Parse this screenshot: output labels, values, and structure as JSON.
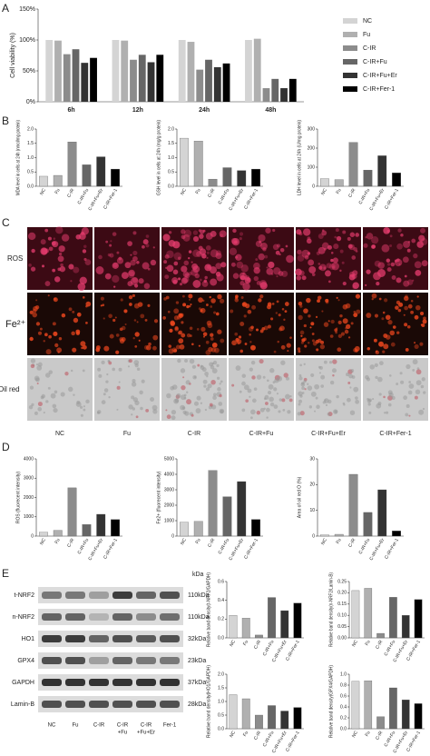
{
  "panel_labels": [
    "A",
    "B",
    "C",
    "D",
    "E"
  ],
  "chart_data": [
    {
      "type": "bar",
      "ylabel": "Cell viability (%)",
      "categories": [
        "6h",
        "12h",
        "24h",
        "48h"
      ],
      "series": [
        {
          "name": "NC",
          "color": "#d4d4d4",
          "values": [
            100,
            100,
            100,
            100
          ]
        },
        {
          "name": "Fu",
          "color": "#b0b0b0",
          "values": [
            99,
            99,
            97,
            102
          ]
        },
        {
          "name": "C-IR",
          "color": "#8c8c8c",
          "values": [
            77,
            68,
            52,
            22
          ]
        },
        {
          "name": "C-IR+Fu",
          "color": "#666666",
          "values": [
            85,
            76,
            68,
            37
          ]
        },
        {
          "name": "C-IR+Fu+Er",
          "color": "#333333",
          "values": [
            63,
            64,
            56,
            22
          ]
        },
        {
          "name": "C-IR+Fer-1",
          "color": "#000000",
          "values": [
            71,
            76,
            62,
            37
          ]
        }
      ],
      "ylim": [
        0,
        150
      ],
      "yticks": [
        {
          "value": 0,
          "label": "0%"
        },
        {
          "value": 50,
          "label": "50%"
        },
        {
          "value": 100,
          "label": "100%"
        },
        {
          "value": 150,
          "label": "150%"
        }
      ],
      "legend": "right"
    },
    {
      "type": "bar",
      "ylabel": "MDA level in cells at 24h (nmol/mg protein)",
      "categories": [
        "NC",
        "Fu",
        "C-IR",
        "C-IR+Fu",
        "C-IR+Fu+Er",
        "C-IR+Fer-1"
      ],
      "values": [
        0.35,
        0.38,
        1.55,
        0.75,
        1.03,
        0.6
      ],
      "colors": [
        "#d4d4d4",
        "#b0b0b0",
        "#8c8c8c",
        "#666666",
        "#333333",
        "#000000"
      ],
      "ylim": [
        0,
        2
      ],
      "yticks": [
        {
          "value": 0,
          "label": "0.0"
        },
        {
          "value": 0.5,
          "label": "0.5"
        },
        {
          "value": 1,
          "label": "1.0"
        },
        {
          "value": 1.5,
          "label": "1.5"
        },
        {
          "value": 2,
          "label": "2.0"
        }
      ]
    },
    {
      "type": "bar",
      "ylabel": "GSH level in cells at 24h (mg/g protein)",
      "categories": [
        "NC",
        "Fu",
        "C-IR",
        "C-IR+Fu",
        "C-IR+Fu+Er",
        "C-IR+Fer-1"
      ],
      "values": [
        1.68,
        1.58,
        0.25,
        0.65,
        0.55,
        0.6
      ],
      "colors": [
        "#d4d4d4",
        "#b0b0b0",
        "#8c8c8c",
        "#666666",
        "#333333",
        "#000000"
      ],
      "ylim": [
        0,
        2
      ],
      "yticks": [
        {
          "value": 0,
          "label": "0.0"
        },
        {
          "value": 0.5,
          "label": "0.5"
        },
        {
          "value": 1,
          "label": "1.0"
        },
        {
          "value": 1.5,
          "label": "1.5"
        },
        {
          "value": 2,
          "label": "2.0"
        }
      ]
    },
    {
      "type": "bar",
      "ylabel": "LDH level in cells at 24h (U/mg protein)",
      "categories": [
        "NC",
        "Fu",
        "C-IR",
        "C-IR+Fu",
        "C-IR+Fu+Er",
        "C-IR+Fer-1"
      ],
      "values": [
        40,
        35,
        230,
        85,
        160,
        70
      ],
      "colors": [
        "#d4d4d4",
        "#b0b0b0",
        "#8c8c8c",
        "#666666",
        "#333333",
        "#000000"
      ],
      "ylim": [
        0,
        300
      ],
      "yticks": [
        0,
        100,
        200,
        300
      ]
    },
    {
      "type": "bar",
      "ylabel": "ROS (fluorecent intensity)",
      "categories": [
        "NC",
        "Fu",
        "C-IR",
        "C-IR+Fu",
        "C-IR+Fu+Er",
        "C-IR+Fer-1"
      ],
      "values": [
        200,
        300,
        2500,
        600,
        1130,
        860
      ],
      "colors": [
        "#d4d4d4",
        "#b0b0b0",
        "#8c8c8c",
        "#666666",
        "#333333",
        "#000000"
      ],
      "ylim": [
        0,
        4000
      ],
      "yticks": [
        0,
        1000,
        2000,
        3000,
        4000
      ]
    },
    {
      "type": "bar",
      "ylabel": "Fe2+ (fluorecent intensity)",
      "categories": [
        "NC",
        "Fu",
        "C-IR",
        "C-IR+Fu",
        "C-IR+Fu+Er",
        "C-IR+Fer-1"
      ],
      "values": [
        900,
        950,
        4250,
        2550,
        3530,
        1080
      ],
      "colors": [
        "#d4d4d4",
        "#b0b0b0",
        "#8c8c8c",
        "#666666",
        "#333333",
        "#000000"
      ],
      "ylim": [
        0,
        5000
      ],
      "yticks": [
        0,
        1000,
        2000,
        3000,
        4000,
        5000
      ]
    },
    {
      "type": "bar",
      "ylabel": "Area of oil red O (%)",
      "categories": [
        "NC",
        "Fu",
        "C-IR",
        "C-IR+Fu",
        "C-IR+Fu+Er",
        "C-IR+Fer-1"
      ],
      "values": [
        0.5,
        0.7,
        24,
        9.2,
        18,
        2
      ],
      "colors": [
        "#d4d4d4",
        "#b0b0b0",
        "#8c8c8c",
        "#666666",
        "#333333",
        "#000000"
      ],
      "ylim": [
        0,
        30
      ],
      "yticks": [
        0,
        10,
        20,
        30
      ]
    },
    {
      "type": "bar",
      "ylabel": "Relative band density(t-NRF2/GAPDH)",
      "categories": [
        "NC",
        "Fu",
        "C-IR",
        "C-IR+Fu",
        "C-IR+Fu+Er",
        "C-IR+Fer-1"
      ],
      "values": [
        0.24,
        0.21,
        0.03,
        0.43,
        0.29,
        0.37
      ],
      "colors": [
        "#d4d4d4",
        "#b0b0b0",
        "#8c8c8c",
        "#666666",
        "#333333",
        "#000000"
      ],
      "ylim": [
        0,
        0.6
      ],
      "yticks": [
        {
          "value": 0,
          "label": "0.0"
        },
        {
          "value": 0.2,
          "label": "0.2"
        },
        {
          "value": 0.4,
          "label": "0.4"
        },
        {
          "value": 0.6,
          "label": "0.6"
        }
      ]
    },
    {
      "type": "bar",
      "ylabel": "Relative band density(n-NRF2/Lamin-B)",
      "categories": [
        "NC",
        "Fu",
        "C-IR",
        "C-IR+Fu",
        "C-IR+Fu+Er",
        "C-IR+Fer-1"
      ],
      "values": [
        0.21,
        0.22,
        0.02,
        0.18,
        0.1,
        0.17
      ],
      "colors": [
        "#d4d4d4",
        "#b0b0b0",
        "#8c8c8c",
        "#666666",
        "#333333",
        "#000000"
      ],
      "ylim": [
        0,
        0.25
      ],
      "yticks": [
        {
          "value": 0,
          "label": "0.00"
        },
        {
          "value": 0.05,
          "label": "0.05"
        },
        {
          "value": 0.1,
          "label": "0.10"
        },
        {
          "value": 0.15,
          "label": "0.15"
        },
        {
          "value": 0.2,
          "label": "0.20"
        },
        {
          "value": 0.25,
          "label": "0.25"
        }
      ]
    },
    {
      "type": "bar",
      "ylabel": "Relative band density(HO1/GAPDH)",
      "categories": [
        "NC",
        "Fu",
        "C-IR",
        "C-IR+Fu",
        "C-IR+Fu+Er",
        "C-IR+Fer-1"
      ],
      "values": [
        1.25,
        1.1,
        0.5,
        0.85,
        0.65,
        0.78
      ],
      "colors": [
        "#d4d4d4",
        "#b0b0b0",
        "#8c8c8c",
        "#666666",
        "#333333",
        "#000000"
      ],
      "ylim": [
        0,
        2
      ],
      "yticks": [
        {
          "value": 0,
          "label": "0.0"
        },
        {
          "value": 0.5,
          "label": "0.5"
        },
        {
          "value": 1,
          "label": "1.0"
        },
        {
          "value": 1.5,
          "label": "1.5"
        },
        {
          "value": 2,
          "label": "2.0"
        }
      ]
    },
    {
      "type": "bar",
      "ylabel": "Relative band density(GPX4/GAPDH)",
      "categories": [
        "NC",
        "Fu",
        "C-IR",
        "C-IR+Fu",
        "C-IR+Fu+Er",
        "C-IR+Fer-1"
      ],
      "values": [
        0.87,
        0.88,
        0.22,
        0.75,
        0.53,
        0.46
      ],
      "colors": [
        "#d4d4d4",
        "#b0b0b0",
        "#8c8c8c",
        "#666666",
        "#333333",
        "#000000"
      ],
      "ylim": [
        0,
        1
      ],
      "yticks": [
        {
          "value": 0,
          "label": "0.0"
        },
        {
          "value": 0.2,
          "label": "0.2"
        },
        {
          "value": 0.4,
          "label": "0.4"
        },
        {
          "value": 0.6,
          "label": "0.6"
        },
        {
          "value": 0.8,
          "label": "0.8"
        },
        {
          "value": 1,
          "label": "1.0"
        }
      ]
    }
  ],
  "microscopy": {
    "rows": [
      "ROS",
      "Fe²⁺",
      "Oil red"
    ],
    "columns": [
      "NC",
      "Fu",
      "C-IR",
      "C-IR+Fu",
      "C-IR+Fu+Er",
      "C-IR+Fer-1"
    ]
  },
  "western_blot": {
    "unit_header": "kDa",
    "bands": [
      {
        "name": "t-NRF2",
        "size": "110kDa"
      },
      {
        "name": "n-NRF2",
        "size": "110kDa"
      },
      {
        "name": "HO1",
        "size": "32kDa"
      },
      {
        "name": "GPX4",
        "size": "23kDa"
      },
      {
        "name": "GAPDH",
        "size": "37kDa"
      },
      {
        "name": "Lamin-B",
        "size": "28kDa"
      }
    ],
    "lanes": [
      [
        "NC"
      ],
      [
        "Fu"
      ],
      [
        "C-IR"
      ],
      [
        "C-IR",
        "+Fu"
      ],
      [
        "C-IR",
        "+Fu+Er"
      ],
      [
        "Fer-1"
      ]
    ]
  }
}
